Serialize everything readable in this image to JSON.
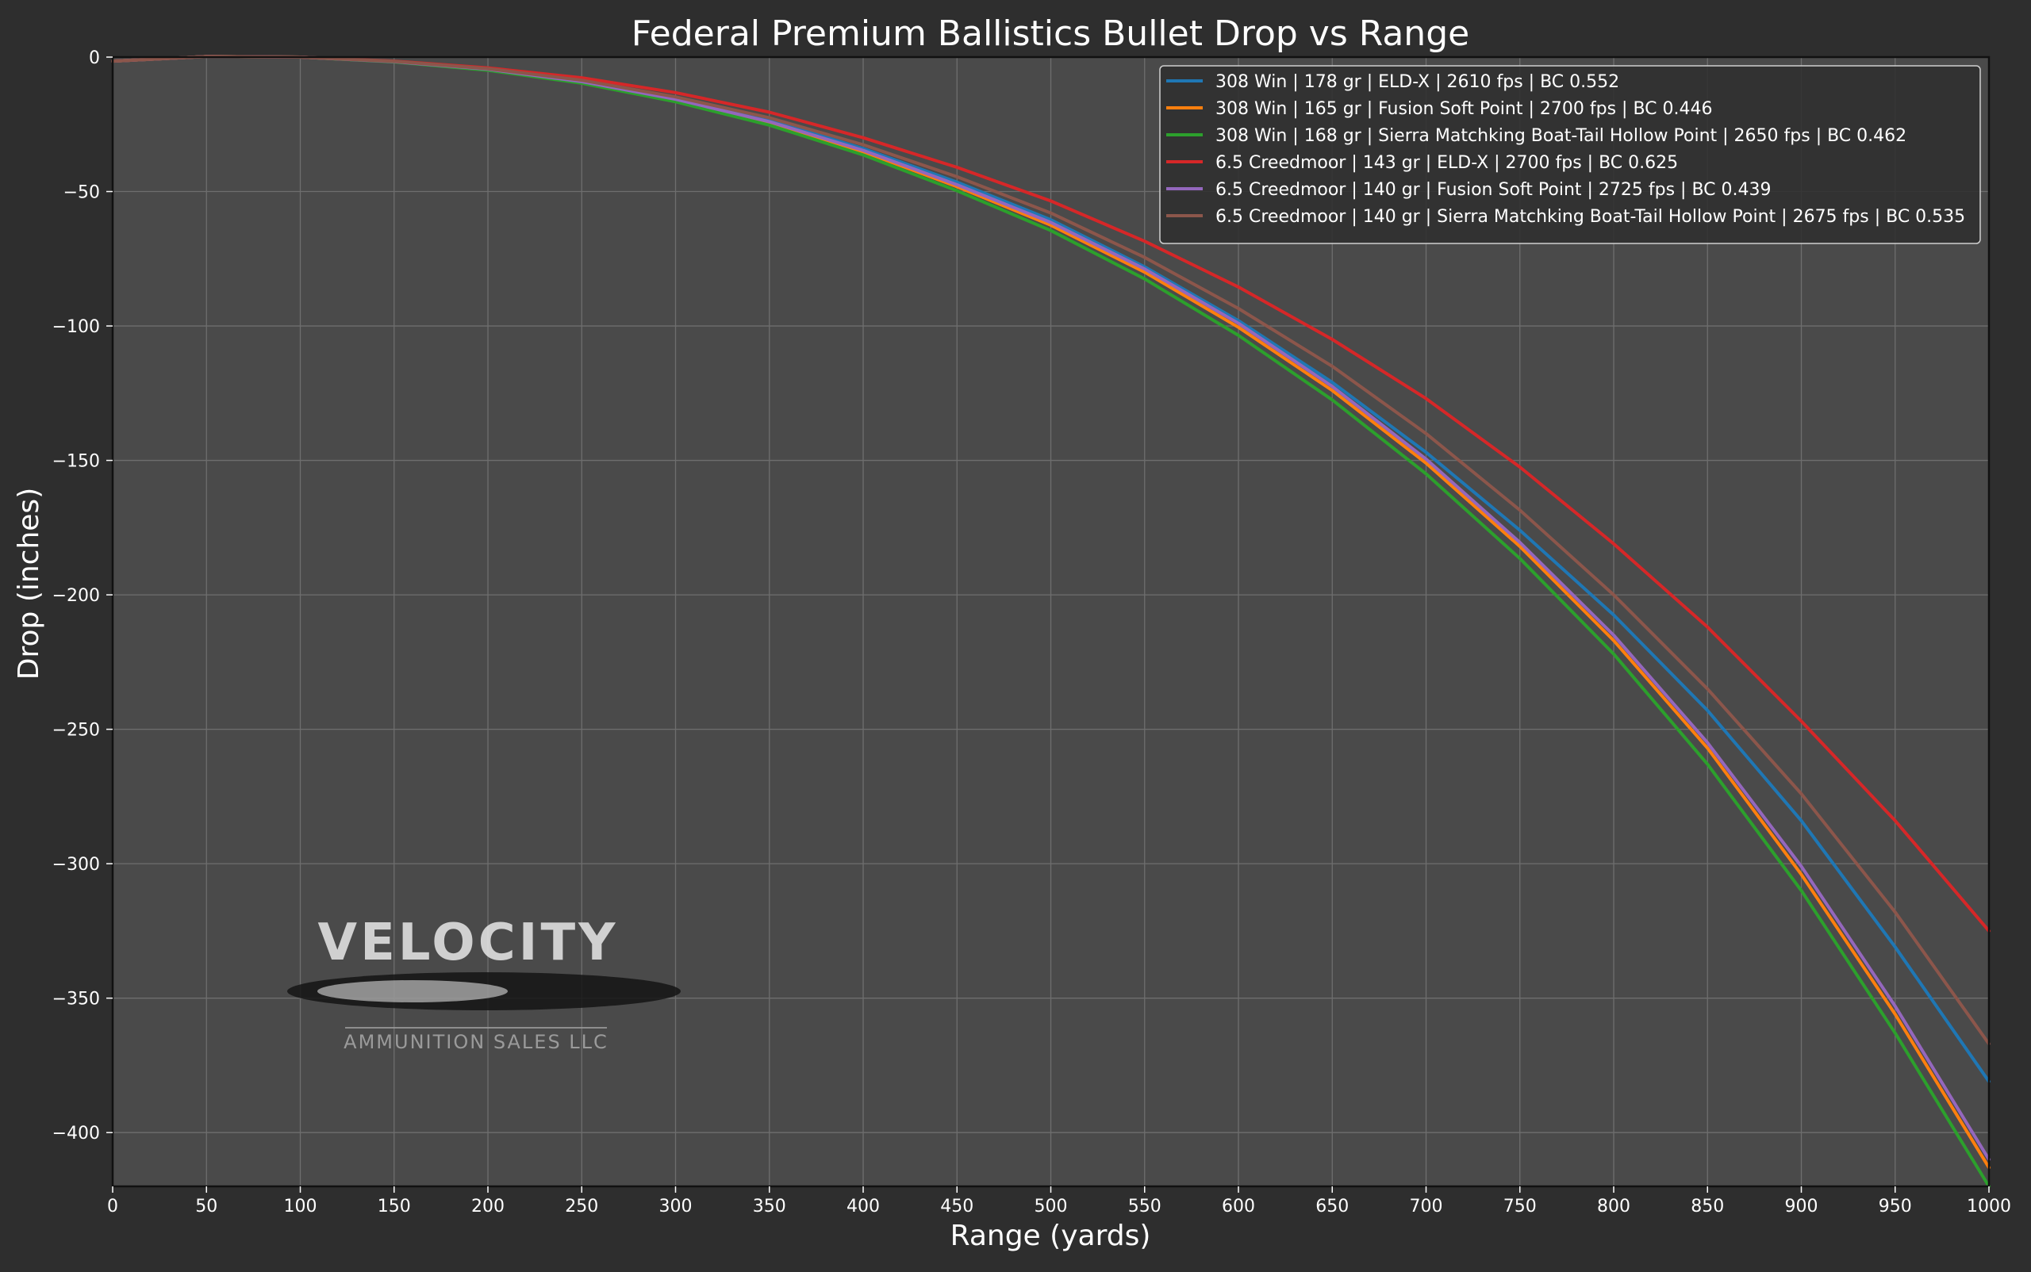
{
  "chart_data": {
    "type": "line",
    "title": "Federal Premium Ballistics Bullet Drop vs Range",
    "xlabel": "Range (yards)",
    "ylabel": "Drop (inches)",
    "xlim": [
      0,
      1000
    ],
    "ylim": [
      -420,
      0
    ],
    "x_ticks": [
      0,
      50,
      100,
      150,
      200,
      250,
      300,
      350,
      400,
      450,
      500,
      550,
      600,
      650,
      700,
      750,
      800,
      850,
      900,
      950,
      1000
    ],
    "y_ticks": [
      0,
      -50,
      -100,
      -150,
      -200,
      -250,
      -300,
      -350,
      -400
    ],
    "grid": true,
    "legend_position": "top-right",
    "x": [
      0,
      50,
      100,
      150,
      200,
      250,
      300,
      350,
      400,
      450,
      500,
      550,
      600,
      650,
      700,
      750,
      800,
      850,
      900,
      950,
      1000
    ],
    "series": [
      {
        "name": "308 Win | 178 gr | ELD-X | 2610 fps | BC 0.552",
        "color": "#1f77b4",
        "values": [
          -1.5,
          0.2,
          0,
          -1.7,
          -4.5,
          -9,
          -15.5,
          -23.5,
          -34,
          -46.5,
          -60.5,
          -78,
          -98,
          -121,
          -147,
          -176,
          -207.5,
          -243,
          -284,
          -331,
          -381
        ]
      },
      {
        "name": "308 Win | 165 gr | Fusion Soft Point | 2700 fps | BC 0.446",
        "color": "#ff7f0e",
        "values": [
          -1.5,
          0.2,
          0,
          -1.7,
          -4.6,
          -9.3,
          -16,
          -24.4,
          -35.2,
          -48.2,
          -62.5,
          -80,
          -100.5,
          -124,
          -151,
          -182,
          -217,
          -257,
          -304,
          -356,
          -413
        ]
      },
      {
        "name": "308 Win | 168 gr | Sierra Matchking Boat-Tail Hollow Point | 2650 fps | BC 0.462",
        "color": "#2ca02c",
        "values": [
          -1.5,
          0.2,
          0,
          -1.8,
          -4.9,
          -9.7,
          -16.6,
          -25.3,
          -36.4,
          -49.7,
          -64.5,
          -82.5,
          -103.5,
          -127.5,
          -155,
          -186.5,
          -222,
          -263,
          -310,
          -363,
          -420
        ]
      },
      {
        "name": "6.5 Creedmoor | 143 gr | ELD-X | 2700 fps | BC 0.625",
        "color": "#d62728",
        "values": [
          -1.5,
          0.2,
          0,
          -1.5,
          -4,
          -7.7,
          -13.2,
          -20.5,
          -30,
          -41,
          -53.5,
          -68.5,
          -85.5,
          -105,
          -127,
          -152.5,
          -181,
          -212,
          -247,
          -284,
          -325
        ]
      },
      {
        "name": "6.5 Creedmoor | 140 gr | Fusion Soft Point | 2725 fps | BC 0.439",
        "color": "#9467bd",
        "values": [
          -1.5,
          0.2,
          0,
          -1.7,
          -4.5,
          -9.1,
          -15.7,
          -24,
          -34.7,
          -47.5,
          -61.5,
          -78.8,
          -99,
          -122.5,
          -149.5,
          -180.5,
          -215,
          -255,
          -301,
          -353,
          -410
        ]
      },
      {
        "name": "6.5 Creedmoor | 140 gr | Sierra Matchking Boat-Tail Hollow Point | 2675 fps | BC 0.535",
        "color": "#8c564b",
        "values": [
          -1.5,
          0.2,
          0,
          -1.6,
          -4.3,
          -8.6,
          -14.8,
          -22.6,
          -32.6,
          -44.5,
          -58,
          -74.5,
          -93.5,
          -115,
          -140,
          -168.5,
          -200,
          -235,
          -274,
          -318,
          -367
        ]
      }
    ]
  },
  "watermark": {
    "brand": "VELOCITY",
    "tagline": "AMMUNITION SALES LLC"
  }
}
